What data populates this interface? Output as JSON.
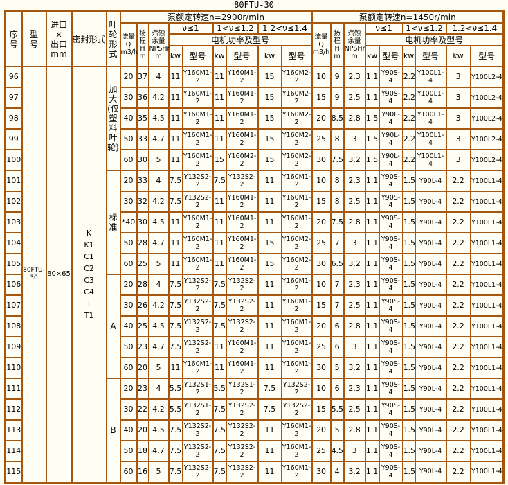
{
  "page": {
    "title": "80FTU-30",
    "colors": {
      "border": "#A5570F",
      "background": "#FFFEF4",
      "cell_background": "#FFFEF4",
      "text": "#000000"
    }
  },
  "header": {
    "col_serial": [
      "序",
      "号"
    ],
    "col_model": [
      "型",
      "号"
    ],
    "col_inlet_outlet": [
      "进口",
      "×",
      "出口",
      "mm"
    ],
    "col_seal": "密封形式",
    "col_impeller": "叶轮形式",
    "speed_2900": "泵额定转速n=2900r/min",
    "speed_1450": "泵额定转速n=1450r/min",
    "flow": [
      "流量",
      "Q",
      "m3/h"
    ],
    "head_2900": [
      "扬",
      "程",
      "H",
      "m"
    ],
    "head_1450": [
      "扬",
      "程",
      "H m"
    ],
    "npsh": [
      "汽蚀",
      "余量",
      "NPSHr",
      "m"
    ],
    "v_le_1": "ν≤1",
    "v_1_to_12": "1<ν≤1.2",
    "v_12_to_14": "1.2<ν≤1.4",
    "motor_power": "电机功率及型号",
    "kw": "kw",
    "model": "型号"
  },
  "shared": {
    "pump_model": "80FTU-30",
    "inlet_outlet": "80×65",
    "seal_types": [
      "K",
      "K1",
      "C1",
      "C2",
      "C3",
      "C4",
      "T",
      "T1"
    ]
  },
  "impeller_groups": [
    {
      "label": "加大(仅塑料叶轮)",
      "span": 5
    },
    {
      "label": "标准",
      "span": 5
    },
    {
      "label": "A",
      "span": 5
    },
    {
      "label": "B",
      "span": 5
    }
  ],
  "row_fields": [
    "serial",
    "flow_2900",
    "head_2900",
    "npsh_2900",
    "kw_v1",
    "model_v1",
    "kw_v2",
    "model_v2",
    "kw_v3",
    "model_v3",
    "flow_1450",
    "head_1450",
    "npsh_1450",
    "kw_v1",
    "model_v1",
    "kw_v2",
    "model_v2",
    "kw_v3",
    "model_v3"
  ],
  "rows": [
    [
      "96",
      "20",
      "37",
      "4",
      "11",
      "Y160M1-2",
      "11",
      "Y160M1-2",
      "15",
      "Y160M2-2",
      "10",
      "9",
      "2.3",
      "1.1",
      "Y90S-4",
      "2.2",
      "Y100L1-4",
      "3",
      "Y100L2-4"
    ],
    [
      "97",
      "30",
      "36",
      "4.2",
      "11",
      "Y160M1-2",
      "11",
      "Y160M1-2",
      "15",
      "Y160M2-2",
      "15",
      "9",
      "2.5",
      "1.1",
      "Y90S-4",
      "2.2",
      "Y100L1-4",
      "3",
      "Y100L2-4"
    ],
    [
      "98",
      "40",
      "35",
      "4.5",
      "11",
      "Y160M1-2",
      "11",
      "Y160M1-2",
      "15",
      "Y160M2-2",
      "20",
      "8.5",
      "2.8",
      "1.5",
      "Y90L-4",
      "2.2",
      "Y100L1-4",
      "3",
      "Y100L2-4"
    ],
    [
      "99",
      "50",
      "33",
      "4.7",
      "11",
      "Y160M1-2",
      "11",
      "Y160M1-2",
      "15",
      "Y160M2-2",
      "25",
      "8",
      "3",
      "1.5",
      "Y90L-4",
      "2.2",
      "Y100L1-4",
      "3",
      "Y100L2-4"
    ],
    [
      "100",
      "60",
      "30",
      "5",
      "11",
      "Y160M1-2",
      "15",
      "Y160M2-2",
      "15",
      "Y160M2-2",
      "30",
      "7.5",
      "3.2",
      "1.5",
      "Y90L-4",
      "2.2",
      "Y100L1-4",
      "3",
      "Y100L2-4"
    ],
    [
      "101",
      "20",
      "33",
      "4",
      "7.5",
      "Y132S2-2",
      "7.5",
      "Y132S2-2",
      "11",
      "Y160M1-2",
      "10",
      "8",
      "2.3",
      "1.1",
      "Y90S-4",
      "1.5",
      "Y90L-4",
      "2.2",
      "Y100L1-4"
    ],
    [
      "102",
      "30",
      "32",
      "4.2",
      "7.5",
      "Y132S2-2",
      "11",
      "Y160M1-2",
      "11",
      "Y160M1-2",
      "15",
      "8",
      "2.5",
      "1.1",
      "Y90S-4",
      "1.5",
      "Y90L-4",
      "2.2",
      "Y100L1-4"
    ],
    [
      "103",
      "*40",
      "30",
      "4.5",
      "11",
      "Y160M1-2",
      "11",
      "Y160M1-2",
      "11",
      "Y160M1-2",
      "20",
      "7.5",
      "2.8",
      "1.1",
      "Y90S-4",
      "1.5",
      "Y90L-4",
      "2.2",
      "Y100L1-4"
    ],
    [
      "104",
      "50",
      "28",
      "4.7",
      "11",
      "Y160M1-2",
      "11",
      "Y160M1-2",
      "15",
      "Y160M2-2",
      "25",
      "7",
      "3",
      "1.1",
      "Y90S-4",
      "1.5",
      "Y90L-4",
      "2.2",
      "Y100L1-4"
    ],
    [
      "105",
      "60",
      "25",
      "5",
      "11",
      "Y160M1-2",
      "11",
      "Y160M1-2",
      "15",
      "Y160M2-2",
      "30",
      "6.5",
      "3.2",
      "1.1",
      "Y90S-4",
      "1.5",
      "Y90L-4",
      "2.2",
      "Y100L1-4"
    ],
    [
      "106",
      "20",
      "28",
      "4",
      "7.5",
      "Y132S2-2",
      "7.5",
      "Y132S2-2",
      "11",
      "Y160M1-2",
      "10",
      "7",
      "2.3",
      "1.1",
      "Y90S-4",
      "1.5",
      "Y90L-4",
      "2.2",
      "Y100L1-4"
    ],
    [
      "107",
      "30",
      "26",
      "4.2",
      "7.5",
      "Y132S2-2",
      "7.5",
      "Y132S2-2",
      "11",
      "Y160M1-2",
      "15",
      "7",
      "2.5",
      "1.1",
      "Y90S-4",
      "1.5",
      "Y90L-4",
      "2.2",
      "Y100L1-4"
    ],
    [
      "108",
      "40",
      "25",
      "4.5",
      "7.5",
      "Y132S2-2",
      "7.5",
      "Y132S2-2",
      "11",
      "Y160M1-2",
      "20",
      "6",
      "2.8",
      "1.1",
      "Y90S-4",
      "1.5",
      "Y90L-4",
      "2.2",
      "Y100L1-4"
    ],
    [
      "109",
      "50",
      "23",
      "4.7",
      "7.5",
      "Y132S2-2",
      "11",
      "Y160M1-2",
      "11",
      "Y160M1-2",
      "25",
      "6",
      "3",
      "1.1",
      "Y90S-4",
      "1.5",
      "Y90L-4",
      "2.2",
      "Y100L1-4"
    ],
    [
      "110",
      "60",
      "20",
      "5",
      "11",
      "Y160M1-2",
      "11",
      "Y160M1-2",
      "11",
      "Y160M1-2",
      "30",
      "5",
      "3.2",
      "1.1",
      "Y90S-4",
      "1.5",
      "Y90L-4",
      "2.2",
      "Y100L1-4"
    ],
    [
      "111",
      "20",
      "23",
      "4",
      "5.5",
      "Y132S1-2",
      "5.5",
      "Y132S1-2",
      "7.5",
      "Y132S2-2",
      "10",
      "6",
      "2.3",
      "1.1",
      "Y90S-4",
      "1.5",
      "Y90L-4",
      "2.2",
      "Y100L1-4"
    ],
    [
      "112",
      "30",
      "22",
      "4.2",
      "5.5",
      "Y132S1-2",
      "7.5",
      "Y132S2-2",
      "7.5",
      "Y132S2-2",
      "15",
      "5.5",
      "2.5",
      "1.1",
      "Y90S-4",
      "1.5",
      "Y90L-4",
      "2.2",
      "Y100L1-4"
    ],
    [
      "113",
      "40",
      "20",
      "4.5",
      "7.5",
      "Y132S2-2",
      "7.5",
      "Y132S2-2",
      "11",
      "Y160M1-2",
      "20",
      "5",
      "2.8",
      "1.1",
      "Y90S-4",
      "1.5",
      "Y90L-4",
      "2.2",
      "Y100L1-4"
    ],
    [
      "114",
      "50",
      "18",
      "4.7",
      "7.5",
      "Y132S2-2",
      "7.5",
      "Y132S2-2",
      "11",
      "Y160M1-2",
      "25",
      "4.5",
      "3",
      "1.1",
      "Y90S-4",
      "1.5",
      "Y90L-4",
      "2.2",
      "Y100L1-4"
    ],
    [
      "115",
      "60",
      "16",
      "5",
      "7.5",
      "Y132S2-2",
      "7.5",
      "Y132S2-2",
      "11",
      "Y160M1-2",
      "30",
      "4",
      "3.2",
      "1.1",
      "Y90S-4",
      "1.5",
      "Y90L-4",
      "2.2",
      "Y100L1-4"
    ]
  ]
}
